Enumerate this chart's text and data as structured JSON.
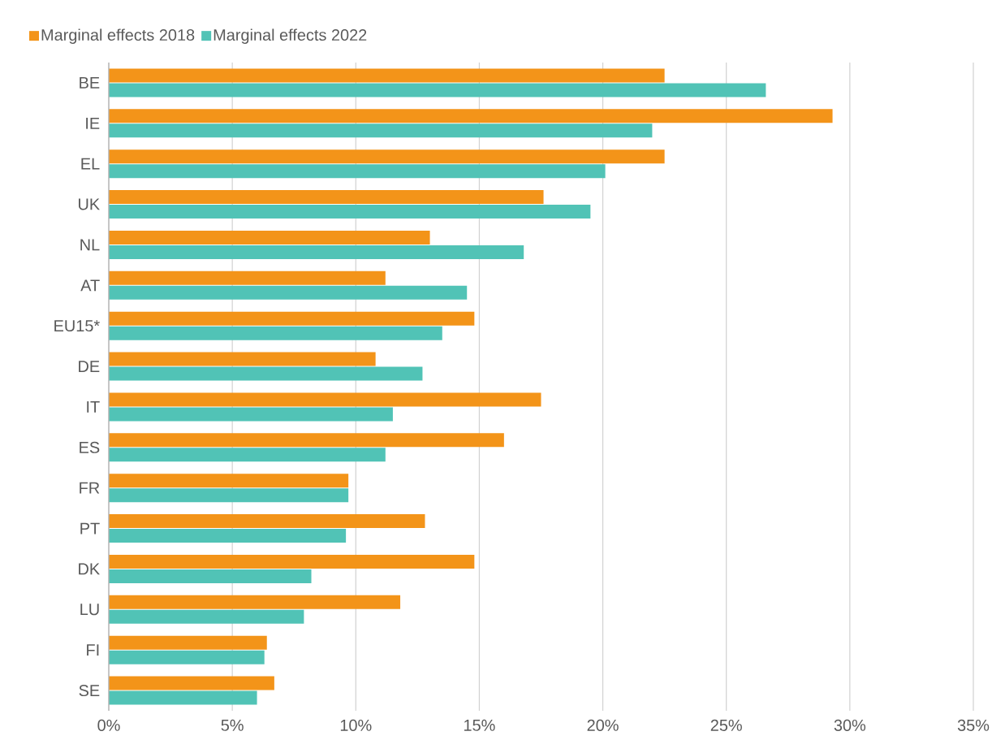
{
  "chart_data": {
    "type": "bar",
    "orientation": "horizontal",
    "categories": [
      "BE",
      "IE",
      "EL",
      "UK",
      "NL",
      "AT",
      "EU15*",
      "DE",
      "IT",
      "ES",
      "FR",
      "PT",
      "DK",
      "LU",
      "FI",
      "SE"
    ],
    "series": [
      {
        "name": "Marginal effects 2018",
        "color": "#f39419",
        "values": [
          22.5,
          29.3,
          22.5,
          17.6,
          13.0,
          11.2,
          14.8,
          10.8,
          17.5,
          16.0,
          9.7,
          12.8,
          14.8,
          11.8,
          6.4,
          6.7
        ]
      },
      {
        "name": "Marginal effects 2022",
        "color": "#51c3b6",
        "values": [
          26.6,
          22.0,
          20.1,
          19.5,
          16.8,
          14.5,
          13.5,
          12.7,
          11.5,
          11.2,
          9.7,
          9.6,
          8.2,
          7.9,
          6.3,
          6.0
        ]
      }
    ],
    "xlim": [
      0,
      35
    ],
    "xticks": [
      {
        "value": 0,
        "label": "0%"
      },
      {
        "value": 5,
        "label": "5%"
      },
      {
        "value": 10,
        "label": "10%"
      },
      {
        "value": 15,
        "label": "15%"
      },
      {
        "value": 20,
        "label": "20%"
      },
      {
        "value": 25,
        "label": "25%"
      },
      {
        "value": 30,
        "label": "30%"
      },
      {
        "value": 35,
        "label": "35%"
      }
    ],
    "grid": "x",
    "legend": "top left"
  }
}
